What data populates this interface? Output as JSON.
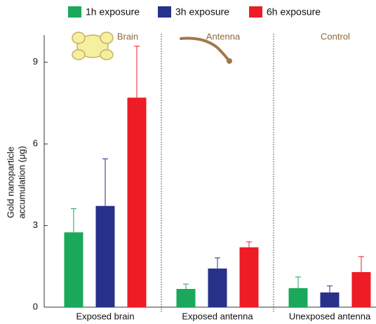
{
  "chart_data": {
    "type": "bar",
    "ylabel": [
      "Gold nanoparticle",
      "accumulation (μg)"
    ],
    "categories": [
      "Exposed brain",
      "Exposed antenna",
      "Unexposed antenna"
    ],
    "annotations": [
      "Brain",
      "Antenna",
      "Control"
    ],
    "annotation_color": "#8b6a3a",
    "series": [
      {
        "name": "1h exposure",
        "color": "#1aa85a",
        "values": [
          2.75,
          0.67,
          0.7
        ],
        "errors": [
          0.87,
          0.18,
          0.41
        ]
      },
      {
        "name": "3h exposure",
        "color": "#27318a",
        "values": [
          3.72,
          1.42,
          0.54
        ],
        "errors": [
          1.73,
          0.39,
          0.24
        ]
      },
      {
        "name": "6h exposure",
        "color": "#ee1c25",
        "values": [
          7.7,
          2.2,
          1.29
        ],
        "errors": [
          1.89,
          0.2,
          0.57
        ]
      }
    ],
    "ylim": [
      0,
      10
    ],
    "yticks": [
      0,
      3,
      6,
      9
    ],
    "grid": false,
    "legend": "top"
  }
}
